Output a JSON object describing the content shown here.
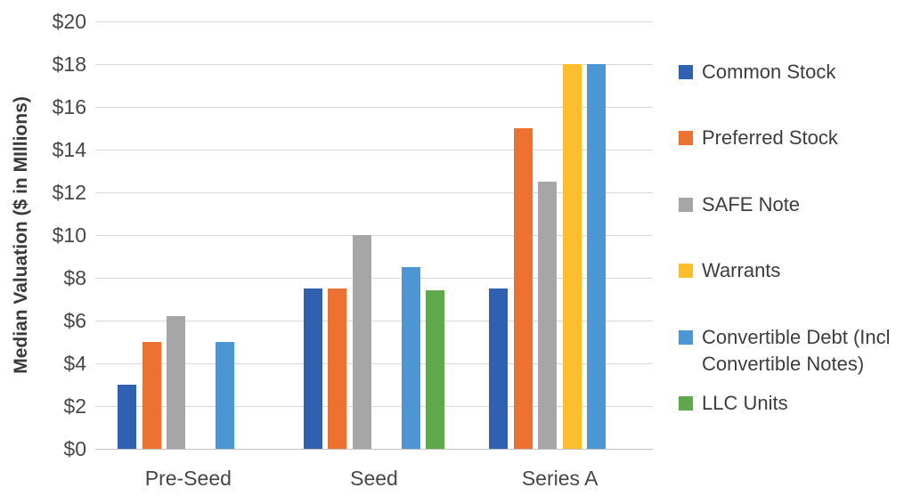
{
  "chart_data": {
    "type": "bar",
    "title": "",
    "xlabel": "",
    "ylabel": "Median Valuation ($ in MIllions)",
    "ylim": [
      0,
      20
    ],
    "ytick_step": 2,
    "ytick_labels": [
      "$0",
      "$2",
      "$4",
      "$6",
      "$8",
      "$10",
      "$12",
      "$14",
      "$16",
      "$18",
      "$20"
    ],
    "grid": "horizontal",
    "legend_position": "right",
    "categories": [
      "Pre-Seed",
      "Seed",
      "Series A"
    ],
    "series": [
      {
        "name": "Common Stock",
        "color": "#3060B1",
        "values": [
          3,
          7.5,
          7.5
        ]
      },
      {
        "name": "Preferred Stock",
        "color": "#ED7231",
        "values": [
          5,
          7.5,
          15
        ]
      },
      {
        "name": "SAFE Note",
        "color": "#A6A6A6",
        "values": [
          6.2,
          10,
          12.5
        ]
      },
      {
        "name": "Warrants",
        "color": "#FBBE2C",
        "values": [
          null,
          null,
          18
        ]
      },
      {
        "name": "Convertible Debt (Incl Convertible Notes)",
        "color": "#4B96D3",
        "values": [
          5,
          8.5,
          18
        ]
      },
      {
        "name": "LLC Units",
        "color": "#5FA84C",
        "values": [
          null,
          7.4,
          null
        ]
      }
    ]
  }
}
